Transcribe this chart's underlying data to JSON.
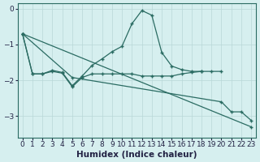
{
  "xlabel": "Humidex (Indice chaleur)",
  "bg_color": "#d6efef",
  "line_color": "#2a6b62",
  "grid_color": "#b8d8d8",
  "xlim": [
    -0.5,
    23.5
  ],
  "ylim": [
    -3.6,
    0.15
  ],
  "yticks": [
    0,
    -1,
    -2,
    -3
  ],
  "xticks": [
    0,
    1,
    2,
    3,
    4,
    5,
    6,
    7,
    8,
    9,
    10,
    11,
    12,
    13,
    14,
    15,
    16,
    17,
    18,
    19,
    20,
    21,
    22,
    23
  ],
  "line1_x": [
    0,
    1,
    2,
    3,
    4,
    5,
    6,
    7,
    8,
    9,
    10,
    11,
    12,
    13,
    14,
    15,
    16,
    17,
    18
  ],
  "line1_y": [
    -0.7,
    -1.82,
    -1.82,
    -1.72,
    -1.78,
    -2.15,
    -1.88,
    -1.58,
    -1.4,
    -1.2,
    -1.05,
    -0.42,
    -0.05,
    -0.18,
    -1.22,
    -1.6,
    -1.7,
    -1.75,
    -1.75
  ],
  "line2_x": [
    0,
    1,
    2,
    3,
    4,
    5,
    6,
    7,
    8,
    9,
    10,
    11,
    12,
    13,
    14,
    15,
    16,
    17,
    18,
    19,
    20
  ],
  "line2_y": [
    -0.7,
    -1.82,
    -1.82,
    -1.75,
    -1.8,
    -2.18,
    -1.92,
    -1.82,
    -1.82,
    -1.82,
    -1.82,
    -1.82,
    -1.88,
    -1.88,
    -1.88,
    -1.88,
    -1.82,
    -1.78,
    -1.75,
    -1.75,
    -1.75
  ],
  "line3_x": [
    0,
    23
  ],
  "line3_y": [
    -0.7,
    -3.3
  ],
  "line4_x": [
    0,
    5,
    20,
    21,
    22,
    23
  ],
  "line4_y": [
    -0.7,
    -1.92,
    -2.6,
    -2.88,
    -2.88,
    -3.12
  ],
  "tick_color": "#222244",
  "tick_fontsize": 6.5,
  "label_fontsize": 7.5
}
